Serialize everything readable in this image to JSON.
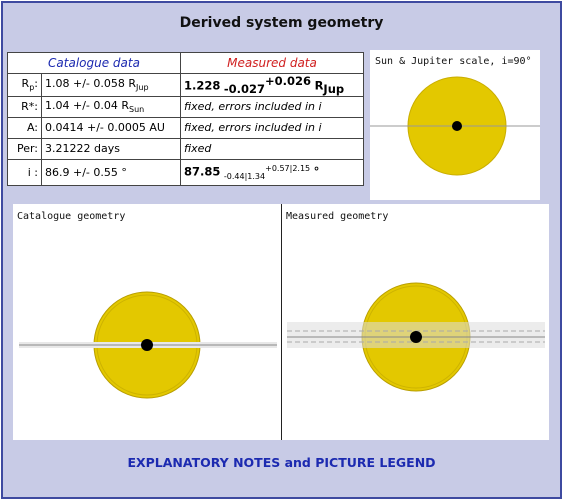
{
  "title": "Derived system geometry",
  "table": {
    "header": {
      "catalogue": "Catalogue data",
      "measured": "Measured data"
    },
    "rows": [
      {
        "label": "R",
        "label_sub": "p",
        "label_suffix": ":",
        "cat_value": "1.08 +/- 0.058 R",
        "cat_sub": "Jup",
        "meas_value": "1.228",
        "meas_minus": "-0.027",
        "meas_plus": "+0.026",
        "meas_unit": "R",
        "meas_unit_sub": "Jup"
      },
      {
        "label": "R*:",
        "cat_value": "1.04 +/- 0.04 R",
        "cat_sub": "Sun",
        "meas_text": "fixed, errors included in i"
      },
      {
        "label": "A:",
        "cat_value": "0.0414 +/- 0.0005 AU",
        "meas_text": "fixed, errors included in i"
      },
      {
        "label": "Per:",
        "cat_value": "3.21222 days",
        "meas_text": "fixed"
      },
      {
        "label": "i :",
        "cat_value": "86.9 +/- 0.55 °",
        "meas_value": "87.85",
        "meas_minus": "-0.44|1.34",
        "meas_plus": "+0.57|2.15",
        "meas_unit": "°"
      }
    ]
  },
  "scale_panel": {
    "label": "Sun & Jupiter scale, i=90°"
  },
  "geometry": {
    "catalogue_label": "Catalogue geometry",
    "measured_label": "Measured geometry"
  },
  "notes_link": "EXPLANATORY NOTES and PICTURE LEGEND",
  "colors": {
    "panel_bg": "#c8cbe6",
    "panel_border": "#3e4aa0",
    "star_fill": "#e3c800",
    "star_edge": "#c9ad00",
    "planet": "#000000",
    "link": "#1c2ab0",
    "measured_header": "#d02020"
  }
}
